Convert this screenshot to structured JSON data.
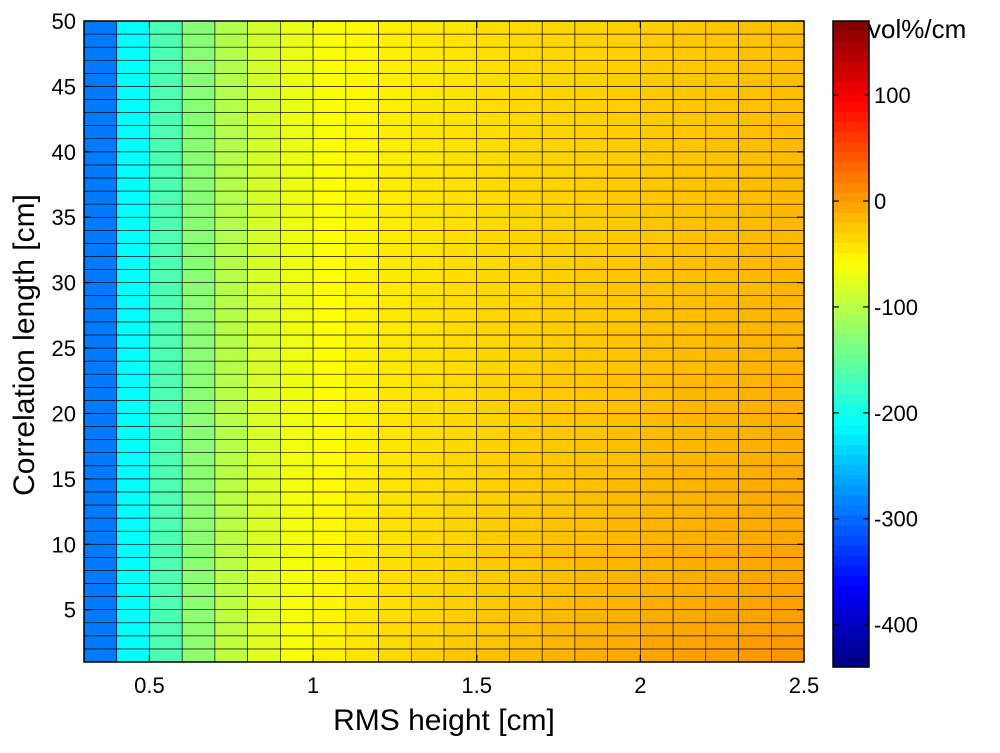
{
  "chart_data": {
    "type": "heatmap",
    "title": "",
    "xlabel": "RMS height [cm]",
    "ylabel": "Correlation length [cm]",
    "xlim": [
      0.3,
      2.5
    ],
    "ylim": [
      1,
      50
    ],
    "x_ticks": [
      "0.5",
      "1",
      "1.5",
      "2",
      "2.5"
    ],
    "y_ticks": [
      "5",
      "10",
      "15",
      "20",
      "25",
      "30",
      "35",
      "40",
      "45",
      "50"
    ],
    "x": [
      0.3,
      0.4,
      0.5,
      0.6,
      0.7,
      0.8,
      0.9,
      1.0,
      1.1,
      1.2,
      1.3,
      1.4,
      1.5,
      1.6,
      1.7,
      1.8,
      1.9,
      2.0,
      2.1,
      2.2,
      2.3,
      2.4
    ],
    "y_range": [
      1,
      50
    ],
    "y_step": 1,
    "column_values_at_y50": [
      -290,
      -210,
      -165,
      -130,
      -105,
      -85,
      -72,
      -62,
      -55,
      -50,
      -46,
      -43,
      -40,
      -37,
      -35,
      -33,
      -31,
      -29,
      -27,
      -25,
      -23,
      -21
    ],
    "column_values_at_y1": [
      -290,
      -210,
      -165,
      -125,
      -95,
      -75,
      -60,
      -48,
      -40,
      -33,
      -28,
      -23,
      -18,
      -14,
      -10,
      -6,
      -3,
      0,
      2,
      4,
      6,
      8
    ],
    "colorbar": {
      "label": "vol%/cm",
      "range": [
        -440,
        170
      ],
      "ticks": [
        "100",
        "0",
        "-100",
        "-200",
        "-300",
        "-400"
      ],
      "colormap": "jet"
    },
    "grid": false
  }
}
